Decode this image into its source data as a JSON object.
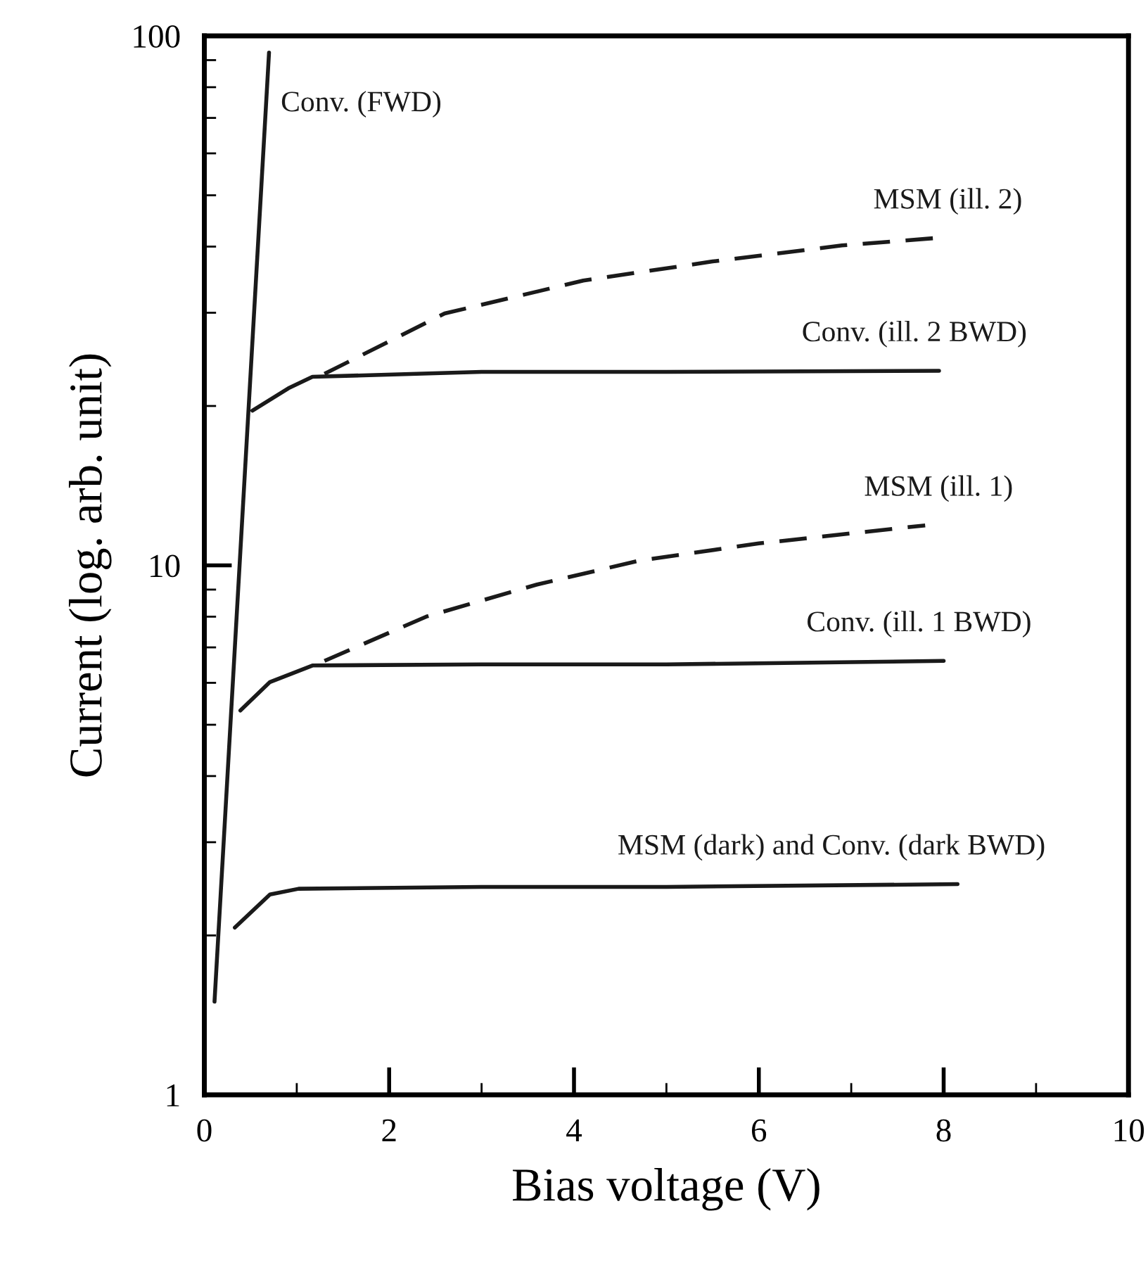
{
  "chart_data": {
    "type": "line",
    "xlabel": "Bias voltage (V)",
    "ylabel": "Current (log. arb. unit)",
    "log": "y",
    "xlim": [
      0,
      10
    ],
    "ylim": [
      1,
      100
    ],
    "xticks": [
      0,
      {
        "value": 1,
        "label": null
      },
      2,
      {
        "value": 3,
        "label": null
      },
      4,
      {
        "value": 5,
        "label": null
      },
      6,
      {
        "value": 7,
        "label": null
      },
      8,
      {
        "value": 9,
        "label": null
      },
      10
    ],
    "yticks": [
      1,
      {
        "value": 2,
        "label": null
      },
      {
        "value": 3,
        "label": null
      },
      {
        "value": 4,
        "label": null
      },
      {
        "value": 5,
        "label": null
      },
      {
        "value": 6,
        "label": null
      },
      {
        "value": 7,
        "label": null
      },
      {
        "value": 8,
        "label": null
      },
      {
        "value": 9,
        "label": null
      },
      10,
      {
        "value": 20,
        "label": null
      },
      {
        "value": 30,
        "label": null
      },
      {
        "value": 40,
        "label": null
      },
      {
        "value": 50,
        "label": null
      },
      {
        "value": 60,
        "label": null
      },
      {
        "value": 70,
        "label": null
      },
      {
        "value": 80,
        "label": null
      },
      {
        "value": 90,
        "label": null
      },
      100
    ],
    "grid": false,
    "legend": false,
    "series": [
      {
        "name": "Conv. (FWD)",
        "color": "#1a1a1a",
        "line_style": "solid",
        "x": [
          0.11,
          0.7
        ],
        "values": [
          1.5,
          93
        ]
      },
      {
        "name": "MSM (ill. 2)",
        "color": "#1a1a1a",
        "line_style": "dashed",
        "x": [
          1.3,
          2.6,
          4.1,
          5.5,
          6.9,
          7.9
        ],
        "values": [
          23,
          29.9,
          34.5,
          37.5,
          40.2,
          41.5
        ]
      },
      {
        "name": "Conv. (ill. 2 BWD)",
        "color": "#1a1a1a",
        "line_style": "solid",
        "x": [
          0.52,
          0.91,
          1.17,
          3,
          5,
          7.95
        ],
        "values": [
          19.6,
          21.6,
          22.7,
          23.2,
          23.2,
          23.3
        ]
      },
      {
        "name": "MSM (ill. 1)",
        "color": "#1a1a1a",
        "line_style": "dashed",
        "x": [
          1.3,
          2.4,
          3.6,
          4.7,
          6.0,
          7.8
        ],
        "values": [
          6.6,
          8.0,
          9.2,
          10.2,
          11.0,
          11.9
        ]
      },
      {
        "name": "Conv. (ill. 1 BWD)",
        "color": "#1a1a1a",
        "line_style": "solid",
        "x": [
          0.39,
          0.71,
          1.17,
          3,
          5,
          8.0
        ],
        "values": [
          5.32,
          6.02,
          6.47,
          6.5,
          6.5,
          6.6
        ]
      },
      {
        "name": "MSM (dark) and Conv. (dark BWD)",
        "color": "#1a1a1a",
        "line_style": "solid",
        "x": [
          0.33,
          0.71,
          1.02,
          3,
          5,
          8.15
        ],
        "values": [
          2.07,
          2.39,
          2.45,
          2.47,
          2.47,
          2.5
        ]
      }
    ]
  }
}
